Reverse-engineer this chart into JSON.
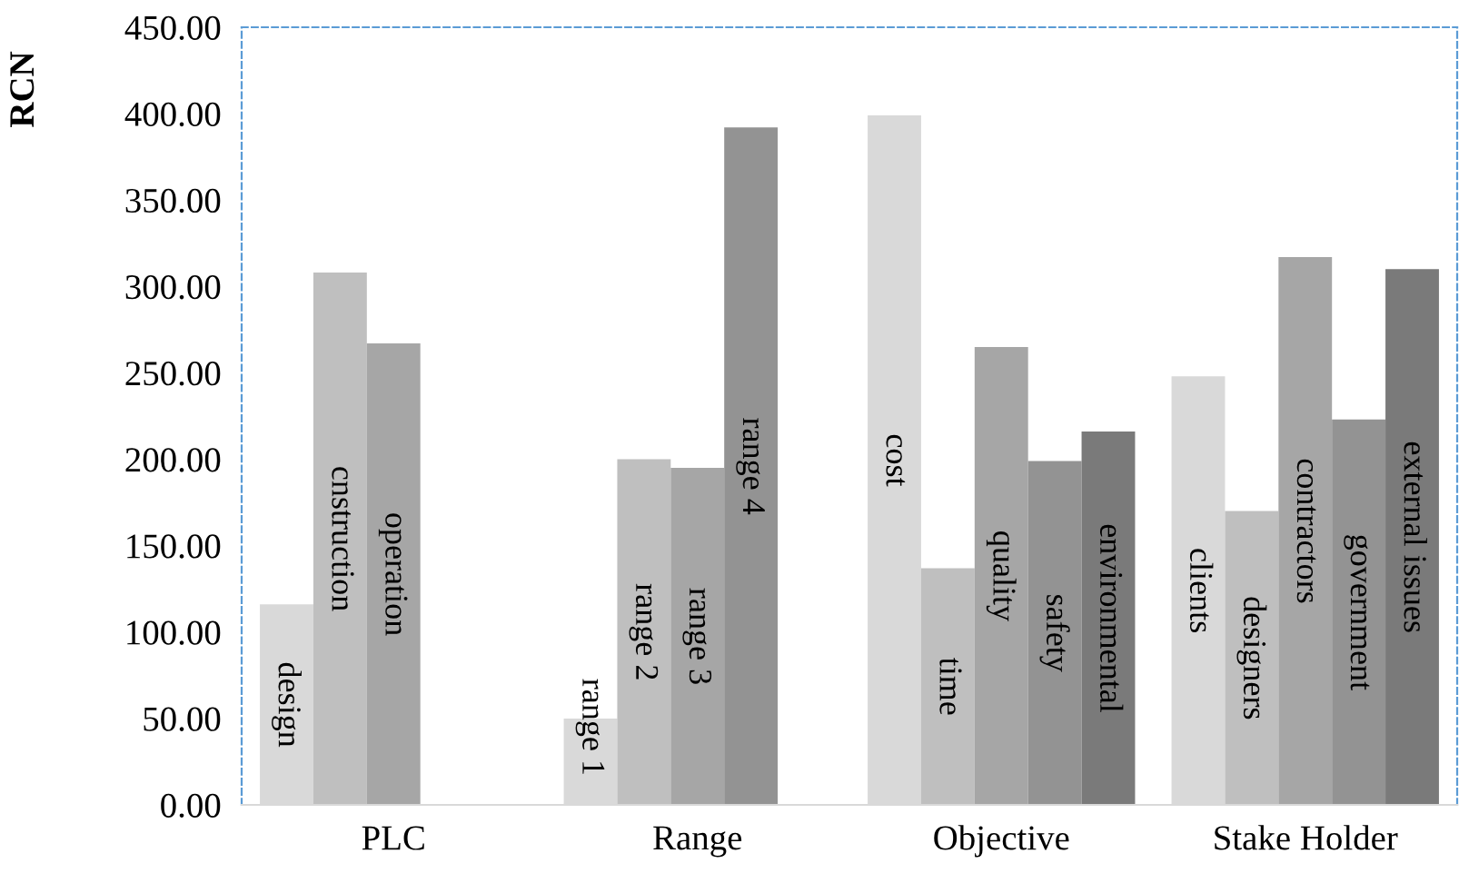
{
  "chart_data": {
    "type": "bar",
    "ylabel": "RCN",
    "categories": [
      "PLC",
      "Range",
      "Objective",
      "Stake Holder"
    ],
    "series": [
      {
        "color": "#d9d9d9",
        "values": [
          116,
          50,
          399,
          248
        ],
        "value_labels": [
          "design",
          "range 1",
          "cost",
          "clients"
        ]
      },
      {
        "color": "#bfbfbf",
        "values": [
          308,
          200,
          137,
          170
        ],
        "value_labels": [
          "cnstruction",
          "range 2",
          "time",
          "designers"
        ]
      },
      {
        "color": "#a6a6a6",
        "values": [
          267,
          195,
          265,
          317
        ],
        "value_labels": [
          "operation",
          "range 3",
          "quality",
          "contractors"
        ]
      },
      {
        "color": "#939393",
        "values": [
          null,
          392,
          199,
          223
        ],
        "value_labels": [
          null,
          "range 4",
          "safety",
          "government"
        ]
      },
      {
        "color": "#7a7a7a",
        "values": [
          null,
          null,
          216,
          310
        ],
        "value_labels": [
          null,
          null,
          "environmental",
          "external issues"
        ]
      }
    ],
    "ylim": [
      0,
      450
    ],
    "yticks": [
      {
        "value": 0,
        "label": "0.00"
      },
      {
        "value": 50,
        "label": "50.00"
      },
      {
        "value": 100,
        "label": "100.00"
      },
      {
        "value": 150,
        "label": "150.00"
      },
      {
        "value": 200,
        "label": "200.00"
      },
      {
        "value": 250,
        "label": "250.00"
      },
      {
        "value": 300,
        "label": "300.00"
      },
      {
        "value": 350,
        "label": "350.00"
      },
      {
        "value": 400,
        "label": "400.00"
      },
      {
        "value": 450,
        "label": "450.00"
      }
    ],
    "grid": false
  }
}
